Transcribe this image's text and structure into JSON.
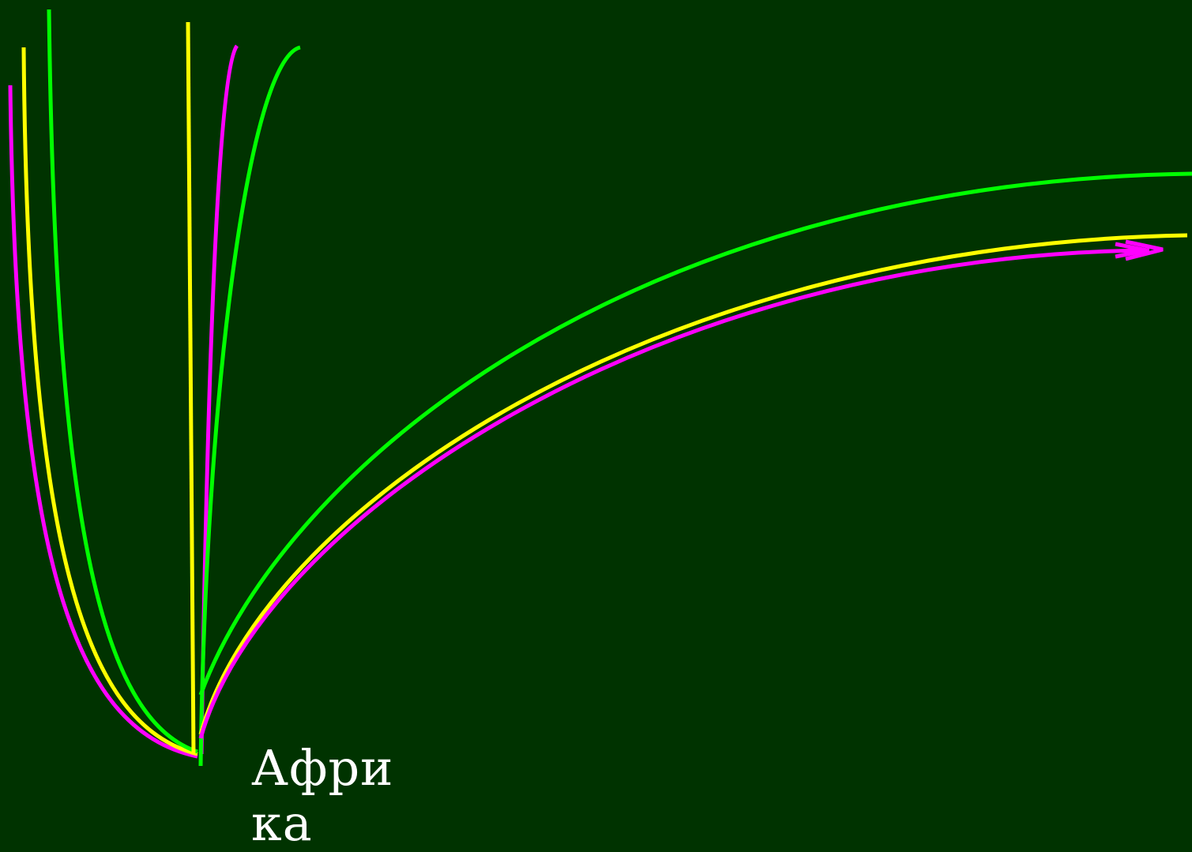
{
  "colors": {
    "background": "#003300",
    "magenta": "#ff00ff",
    "yellow": "#ffff00",
    "green": "#00ff00",
    "label_text": "#ffffff"
  },
  "label": {
    "text": "Африка"
  },
  "lines": [
    {
      "name": "left-magenta-branch",
      "color_key": "magenta"
    },
    {
      "name": "left-yellow-branch",
      "color_key": "yellow"
    },
    {
      "name": "left-green-branch",
      "color_key": "green"
    },
    {
      "name": "center-yellow-vertical",
      "color_key": "yellow"
    },
    {
      "name": "center-magenta-branch",
      "color_key": "magenta"
    },
    {
      "name": "center-green-branch",
      "color_key": "green"
    },
    {
      "name": "right-green-long-curve",
      "color_key": "green"
    },
    {
      "name": "right-yellow-long-curve",
      "color_key": "yellow"
    },
    {
      "name": "right-magenta-arrow-curve",
      "color_key": "magenta"
    }
  ]
}
